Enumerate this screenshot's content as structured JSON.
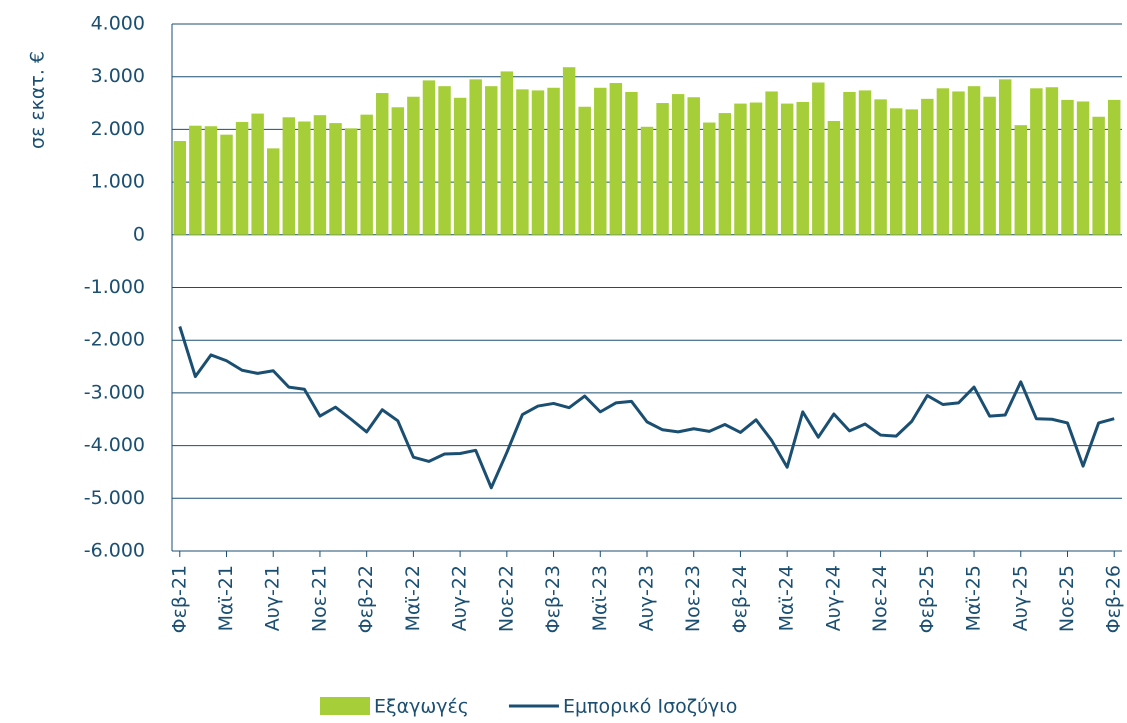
{
  "chart_data": {
    "type": "bar-line",
    "y_label": "σε εκατ. €",
    "categories": [
      "Φεβ-21",
      null,
      null,
      "Μαϊ-21",
      null,
      null,
      "Αυγ-21",
      null,
      null,
      "Νοε-21",
      null,
      null,
      "Φεβ-22",
      null,
      null,
      "Μαϊ-22",
      null,
      null,
      "Αυγ-22",
      null,
      null,
      "Νοε-22",
      null,
      null,
      "Φεβ-23",
      null,
      null,
      "Μαϊ-23",
      null,
      null,
      "Αυγ-23",
      null,
      null,
      "Νοε-23",
      null,
      null,
      "Φεβ-24",
      null,
      null,
      "Μαϊ-24",
      null,
      null,
      "Αυγ-24",
      null,
      null,
      "Νοε-24",
      null,
      null,
      "Φεβ-25",
      null,
      null,
      "Μαϊ-25",
      null,
      null,
      "Αυγ-25",
      null,
      null,
      "Νοε-25",
      null,
      null,
      "Φεβ-26"
    ],
    "series": [
      {
        "name": "Εξαγωγές",
        "type": "bar",
        "color": "#a6ce39",
        "values": [
          1780,
          2070,
          2060,
          1900,
          2140,
          2300,
          1640,
          2230,
          2150,
          2270,
          2120,
          2020,
          2280,
          2690,
          2420,
          2620,
          2930,
          2820,
          2600,
          2950,
          2820,
          3100,
          2760,
          2740,
          2790,
          3180,
          2430,
          2790,
          2880,
          2710,
          2050,
          2500,
          2670,
          2610,
          2130,
          2310,
          2490,
          2510,
          2720,
          2490,
          2520,
          2890,
          2160,
          2710,
          2740,
          2570,
          2400,
          2380,
          2580,
          2780,
          2720,
          2820,
          2620,
          2950,
          2080,
          2780,
          2800,
          2560,
          2530,
          2240,
          2560
        ]
      },
      {
        "name": "Εμπορικό Ισοζύγιο",
        "type": "line",
        "color": "#1b4f72",
        "values": [
          -1740,
          -2690,
          -2280,
          -2390,
          -2570,
          -2630,
          -2580,
          -2890,
          -2930,
          -3440,
          -3270,
          -3500,
          -3740,
          -3320,
          -3530,
          -4220,
          -4300,
          -4160,
          -4150,
          -4090,
          -4800,
          -4130,
          -3410,
          -3250,
          -3200,
          -3280,
          -3060,
          -3360,
          -3190,
          -3160,
          -3550,
          -3700,
          -3740,
          -3680,
          -3730,
          -3600,
          -3750,
          -3510,
          -3900,
          -4410,
          -3360,
          -3840,
          -3400,
          -3720,
          -3590,
          -3800,
          -3820,
          -3540,
          -3050,
          -3220,
          -3190,
          -2890,
          -3440,
          -3420,
          -2790,
          -3490,
          -3500,
          -3570,
          -4390,
          -3570,
          -3490
        ]
      }
    ],
    "ylim": [
      -6000,
      4000
    ],
    "yticks": [
      {
        "value": -6000,
        "label": "-6.000"
      },
      {
        "value": -5000,
        "label": "-5.000"
      },
      {
        "value": -4000,
        "label": "-4.000"
      },
      {
        "value": -3000,
        "label": "-3.000"
      },
      {
        "value": -2000,
        "label": "-2.000"
      },
      {
        "value": -1000,
        "label": "-1.000"
      },
      0,
      {
        "value": 1000,
        "label": "1.000"
      },
      {
        "value": 2000,
        "label": "2.000"
      },
      {
        "value": 3000,
        "label": "3.000"
      },
      {
        "value": 4000,
        "label": "4.000"
      }
    ],
    "grid": true,
    "legend": "bottom"
  }
}
